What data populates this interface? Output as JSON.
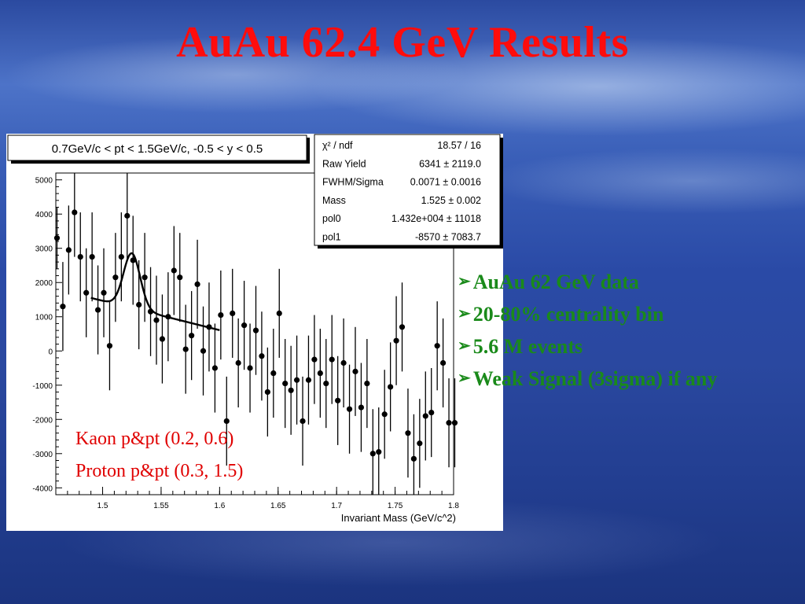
{
  "slide": {
    "title": "AuAu 62.4 GeV Results",
    "bullets": [
      "AuAu 62 GeV data",
      "20-80% centrality bin",
      "5.6 M events",
      "Weak Signal (3sigma) if any"
    ],
    "bullet_icon": "arrow-bullet-icon"
  },
  "plot": {
    "header": "0.7GeV/c < pt < 1.5GeV/c, -0.5 < y < 0.5",
    "stats": [
      {
        "label": "χ² / ndf",
        "value": "18.57 / 16"
      },
      {
        "label": "Raw Yield",
        "value": "6341 ± 2119.0"
      },
      {
        "label": "FWHM/Sigma",
        "value": "0.0071 ± 0.0016"
      },
      {
        "label": "Mass",
        "value": "1.525 ± 0.002"
      },
      {
        "label": "pol0",
        "value": "1.432e+004  ± 11018"
      },
      {
        "label": "pol1",
        "value": "-8570 ± 7083.7"
      }
    ],
    "annotations": [
      "Kaon p&pt (0.2, 0.6)",
      "Proton p&pt (0.3, 1.5)"
    ],
    "colors": {
      "title": "#ff0c0c",
      "bullets": "#1a8a1a",
      "annotation": "#e00000",
      "markers": "#000000"
    }
  },
  "chart_data": {
    "type": "scatter",
    "title": "0.7GeV/c < pt < 1.5GeV/c, -0.5 < y < 0.5",
    "xlabel": "Invariant Mass (GeV/c^2)",
    "ylabel": "",
    "xlim": [
      1.46,
      1.8
    ],
    "ylim": [
      -4200,
      5200
    ],
    "xticks": [
      1.5,
      1.55,
      1.6,
      1.65,
      1.7,
      1.75,
      1.8
    ],
    "xtick_labels": [
      "1.5",
      "1.55",
      "1.6",
      "1.65",
      "1.7",
      "1.75",
      "1.8"
    ],
    "yticks": [
      -4000,
      -3000,
      -2000,
      -1000,
      0,
      1000,
      2000,
      3000,
      4000,
      5000
    ],
    "ytick_labels": [
      "-4000",
      "-3000",
      "-2000",
      "-1000",
      "0",
      "1000",
      "2000",
      "3000",
      "4000",
      "5000"
    ],
    "series": [
      {
        "points": [
          {
            "x": 1.461,
            "y": 3300,
            "err": 900
          },
          {
            "x": 1.466,
            "y": 1300,
            "err": 1300
          },
          {
            "x": 1.471,
            "y": 2950,
            "err": 1300
          },
          {
            "x": 1.476,
            "y": 4050,
            "err": 1300
          },
          {
            "x": 1.481,
            "y": 2750,
            "err": 1300
          },
          {
            "x": 1.486,
            "y": 1700,
            "err": 1300
          },
          {
            "x": 1.491,
            "y": 2750,
            "err": 1300
          },
          {
            "x": 1.496,
            "y": 1200,
            "err": 1300
          },
          {
            "x": 1.501,
            "y": 1700,
            "err": 1300
          },
          {
            "x": 1.506,
            "y": 150,
            "err": 1300
          },
          {
            "x": 1.511,
            "y": 2150,
            "err": 1300
          },
          {
            "x": 1.516,
            "y": 2750,
            "err": 1300
          },
          {
            "x": 1.521,
            "y": 3950,
            "err": 1300
          },
          {
            "x": 1.526,
            "y": 2650,
            "err": 1300
          },
          {
            "x": 1.531,
            "y": 1350,
            "err": 1300
          },
          {
            "x": 1.536,
            "y": 2150,
            "err": 1300
          },
          {
            "x": 1.541,
            "y": 1150,
            "err": 1300
          },
          {
            "x": 1.546,
            "y": 900,
            "err": 1300
          },
          {
            "x": 1.551,
            "y": 350,
            "err": 1300
          },
          {
            "x": 1.556,
            "y": 1000,
            "err": 1300
          },
          {
            "x": 1.561,
            "y": 2350,
            "err": 1300
          },
          {
            "x": 1.566,
            "y": 2150,
            "err": 1300
          },
          {
            "x": 1.571,
            "y": 50,
            "err": 1300
          },
          {
            "x": 1.576,
            "y": 450,
            "err": 1300
          },
          {
            "x": 1.581,
            "y": 1950,
            "err": 1300
          },
          {
            "x": 1.586,
            "y": 0,
            "err": 1300
          },
          {
            "x": 1.591,
            "y": 700,
            "err": 1300
          },
          {
            "x": 1.596,
            "y": -500,
            "err": 1300
          },
          {
            "x": 1.601,
            "y": 1050,
            "err": 1300
          },
          {
            "x": 1.606,
            "y": -2050,
            "err": 1300
          },
          {
            "x": 1.611,
            "y": 1100,
            "err": 1300
          },
          {
            "x": 1.616,
            "y": -350,
            "err": 1300
          },
          {
            "x": 1.621,
            "y": 750,
            "err": 1300
          },
          {
            "x": 1.626,
            "y": -500,
            "err": 1300
          },
          {
            "x": 1.631,
            "y": 600,
            "err": 1300
          },
          {
            "x": 1.636,
            "y": -150,
            "err": 1300
          },
          {
            "x": 1.641,
            "y": -1200,
            "err": 1300
          },
          {
            "x": 1.646,
            "y": -650,
            "err": 1300
          },
          {
            "x": 1.651,
            "y": 1100,
            "err": 1300
          },
          {
            "x": 1.656,
            "y": -950,
            "err": 1300
          },
          {
            "x": 1.661,
            "y": -1150,
            "err": 1300
          },
          {
            "x": 1.666,
            "y": -850,
            "err": 1300
          },
          {
            "x": 1.671,
            "y": -2050,
            "err": 1300
          },
          {
            "x": 1.676,
            "y": -850,
            "err": 1300
          },
          {
            "x": 1.681,
            "y": -250,
            "err": 1300
          },
          {
            "x": 1.686,
            "y": -650,
            "err": 1300
          },
          {
            "x": 1.691,
            "y": -950,
            "err": 1300
          },
          {
            "x": 1.696,
            "y": -250,
            "err": 1300
          },
          {
            "x": 1.701,
            "y": -1450,
            "err": 1300
          },
          {
            "x": 1.706,
            "y": -350,
            "err": 1300
          },
          {
            "x": 1.711,
            "y": -1700,
            "err": 1300
          },
          {
            "x": 1.716,
            "y": -600,
            "err": 1300
          },
          {
            "x": 1.721,
            "y": -1650,
            "err": 1300
          },
          {
            "x": 1.726,
            "y": -950,
            "err": 1300
          },
          {
            "x": 1.731,
            "y": -3000,
            "err": 1300
          },
          {
            "x": 1.736,
            "y": -2950,
            "err": 1300
          },
          {
            "x": 1.741,
            "y": -1850,
            "err": 1300
          },
          {
            "x": 1.746,
            "y": -1050,
            "err": 1300
          },
          {
            "x": 1.751,
            "y": 300,
            "err": 1300
          },
          {
            "x": 1.756,
            "y": 700,
            "err": 1300
          },
          {
            "x": 1.761,
            "y": -2400,
            "err": 1300
          },
          {
            "x": 1.766,
            "y": -3150,
            "err": 1300
          },
          {
            "x": 1.771,
            "y": -2700,
            "err": 1300
          },
          {
            "x": 1.776,
            "y": -1900,
            "err": 1300
          },
          {
            "x": 1.781,
            "y": -1800,
            "err": 1300
          },
          {
            "x": 1.786,
            "y": 150,
            "err": 1300
          },
          {
            "x": 1.791,
            "y": -350,
            "err": 1300
          },
          {
            "x": 1.796,
            "y": -2100,
            "err": 1300
          },
          {
            "x": 1.801,
            "y": -2100,
            "err": 1300
          }
        ]
      }
    ],
    "fit": {
      "function": "gaus+pol1",
      "x_range": [
        1.49,
        1.6
      ],
      "pol0": 14320,
      "pol1": -8570,
      "mass": 1.525,
      "sigma": 0.0071,
      "raw_yield": 6341
    },
    "grid": false,
    "legend": "top-right"
  }
}
